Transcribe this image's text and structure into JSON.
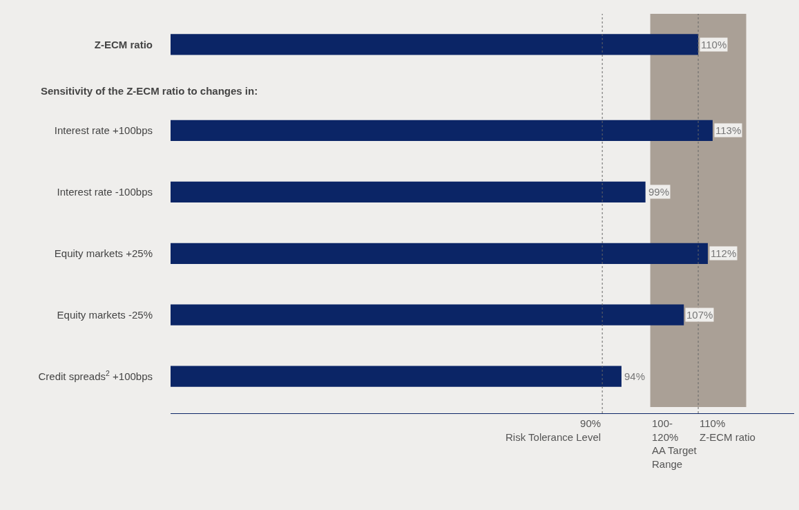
{
  "chart_data": {
    "type": "bar",
    "orientation": "horizontal",
    "categories": [
      "Z-ECM ratio",
      "Interest rate +100bps",
      "Interest rate -100bps",
      "Equity markets +25%",
      "Equity markets -25%",
      "Credit spreads$^{2}$ +100bps"
    ],
    "values": [
      110,
      113,
      99,
      112,
      107,
      94
    ],
    "value_labels": [
      "110%",
      "113%",
      "99%",
      "112%",
      "107%",
      "94%"
    ],
    "color": "#0b2566",
    "xlim": [
      0,
      130
    ],
    "tick_labels": "y",
    "grid": false,
    "legend": false,
    "annotations": [
      "Sensitivity of the Z-ECM ratio to changes in:"
    ],
    "ref_lines": [
      {
        "axis": "x",
        "value": 90,
        "label": "90%\nRisk Tolerance Level",
        "color": "#666666",
        "line_style": "dotted"
      },
      {
        "axis": "x",
        "value": 110,
        "label": "110%\nZ-ECM ratio",
        "color": "#666666",
        "line_style": "dotted"
      }
    ],
    "bands": [
      {
        "axis": "x",
        "from": 100,
        "to": 120,
        "label": "100-\n120%\nAA Target\nRange",
        "color": "#aaa096"
      }
    ]
  }
}
